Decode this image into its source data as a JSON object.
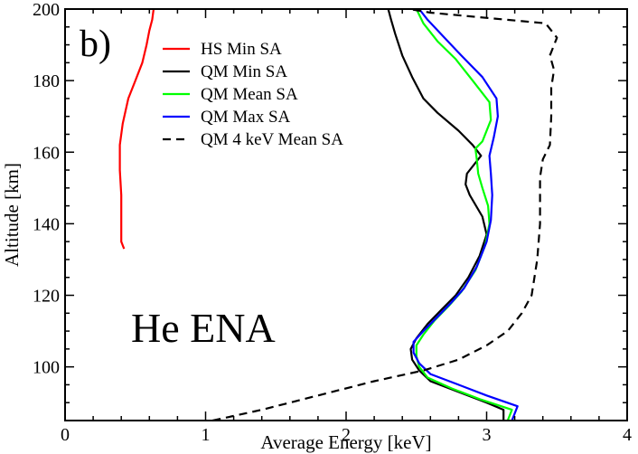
{
  "chart_data": {
    "type": "line",
    "title": "",
    "panel_label": "b)",
    "annotation": "He ENA",
    "xlabel": "Average Energy [keV]",
    "ylabel": "Altitude [km]",
    "xlim": [
      0,
      4
    ],
    "ylim": [
      85,
      200
    ],
    "xticks": [
      0,
      1,
      2,
      3,
      4
    ],
    "yticks": [
      100,
      120,
      140,
      160,
      180,
      200
    ],
    "grid": false,
    "legend_position": "top-left",
    "series": [
      {
        "name": "HS Min SA",
        "color": "#ff0000",
        "dash": false,
        "points": [
          [
            0.42,
            133
          ],
          [
            0.4,
            135
          ],
          [
            0.4,
            140
          ],
          [
            0.4,
            148
          ],
          [
            0.39,
            155
          ],
          [
            0.39,
            162
          ],
          [
            0.41,
            168
          ],
          [
            0.45,
            175
          ],
          [
            0.5,
            180
          ],
          [
            0.55,
            185
          ],
          [
            0.58,
            190
          ],
          [
            0.6,
            194
          ],
          [
            0.62,
            197
          ],
          [
            0.63,
            200
          ]
        ]
      },
      {
        "name": "QM Min SA",
        "color": "#000000",
        "dash": false,
        "points": [
          [
            3.12,
            85
          ],
          [
            3.12,
            88
          ],
          [
            3.0,
            90
          ],
          [
            2.8,
            93
          ],
          [
            2.6,
            96
          ],
          [
            2.52,
            99
          ],
          [
            2.47,
            102
          ],
          [
            2.46,
            105
          ],
          [
            2.5,
            108
          ],
          [
            2.58,
            112
          ],
          [
            2.68,
            116
          ],
          [
            2.78,
            120
          ],
          [
            2.87,
            125
          ],
          [
            2.95,
            131
          ],
          [
            3.0,
            137
          ],
          [
            2.97,
            142
          ],
          [
            2.88,
            148
          ],
          [
            2.85,
            151
          ],
          [
            2.86,
            154
          ],
          [
            2.92,
            157
          ],
          [
            2.96,
            159
          ],
          [
            2.9,
            162
          ],
          [
            2.8,
            166
          ],
          [
            2.65,
            171
          ],
          [
            2.55,
            175
          ],
          [
            2.47,
            181
          ],
          [
            2.4,
            187
          ],
          [
            2.35,
            193
          ],
          [
            2.32,
            197
          ],
          [
            2.3,
            200
          ]
        ]
      },
      {
        "name": "QM Mean SA",
        "color": "#00ff00",
        "dash": false,
        "points": [
          [
            3.15,
            85
          ],
          [
            3.18,
            88
          ],
          [
            2.95,
            91
          ],
          [
            2.75,
            94
          ],
          [
            2.58,
            97
          ],
          [
            2.52,
            100
          ],
          [
            2.5,
            103
          ],
          [
            2.5,
            106
          ],
          [
            2.55,
            109
          ],
          [
            2.63,
            113
          ],
          [
            2.73,
            117
          ],
          [
            2.82,
            121
          ],
          [
            2.92,
            127
          ],
          [
            2.99,
            134
          ],
          [
            3.02,
            140
          ],
          [
            3.01,
            145
          ],
          [
            2.97,
            150
          ],
          [
            2.94,
            154
          ],
          [
            2.93,
            158
          ],
          [
            2.92,
            161
          ],
          [
            2.97,
            163
          ],
          [
            3.03,
            169
          ],
          [
            3.02,
            174
          ],
          [
            2.9,
            180
          ],
          [
            2.78,
            186
          ],
          [
            2.65,
            191
          ],
          [
            2.55,
            196
          ],
          [
            2.5,
            200
          ]
        ]
      },
      {
        "name": "QM Max SA",
        "color": "#0000ff",
        "dash": false,
        "points": [
          [
            3.18,
            85
          ],
          [
            3.22,
            89
          ],
          [
            3.0,
            92
          ],
          [
            2.8,
            95
          ],
          [
            2.6,
            98
          ],
          [
            2.52,
            101
          ],
          [
            2.48,
            104
          ],
          [
            2.48,
            107
          ],
          [
            2.55,
            110
          ],
          [
            2.65,
            114
          ],
          [
            2.75,
            118
          ],
          [
            2.84,
            122
          ],
          [
            2.93,
            128
          ],
          [
            3.0,
            135
          ],
          [
            3.03,
            141
          ],
          [
            3.04,
            148
          ],
          [
            3.03,
            154
          ],
          [
            3.02,
            159
          ],
          [
            3.05,
            164
          ],
          [
            3.08,
            170
          ],
          [
            3.07,
            175
          ],
          [
            2.97,
            181
          ],
          [
            2.82,
            187
          ],
          [
            2.7,
            192
          ],
          [
            2.58,
            197
          ],
          [
            2.52,
            200
          ]
        ]
      },
      {
        "name": "QM 4 keV Mean SA",
        "color": "#000000",
        "dash": true,
        "points": [
          [
            1.05,
            85
          ],
          [
            1.4,
            88
          ],
          [
            1.8,
            92
          ],
          [
            2.2,
            96
          ],
          [
            2.55,
            99
          ],
          [
            2.8,
            102
          ],
          [
            3.0,
            106
          ],
          [
            3.15,
            110
          ],
          [
            3.25,
            115
          ],
          [
            3.32,
            120
          ],
          [
            3.36,
            130
          ],
          [
            3.38,
            140
          ],
          [
            3.38,
            150
          ],
          [
            3.38,
            153
          ],
          [
            3.4,
            158
          ],
          [
            3.45,
            162
          ],
          [
            3.46,
            170
          ],
          [
            3.46,
            178
          ],
          [
            3.48,
            183
          ],
          [
            3.45,
            187
          ],
          [
            3.5,
            192
          ],
          [
            3.42,
            196
          ],
          [
            2.6,
            199
          ],
          [
            2.45,
            200
          ]
        ]
      }
    ]
  }
}
